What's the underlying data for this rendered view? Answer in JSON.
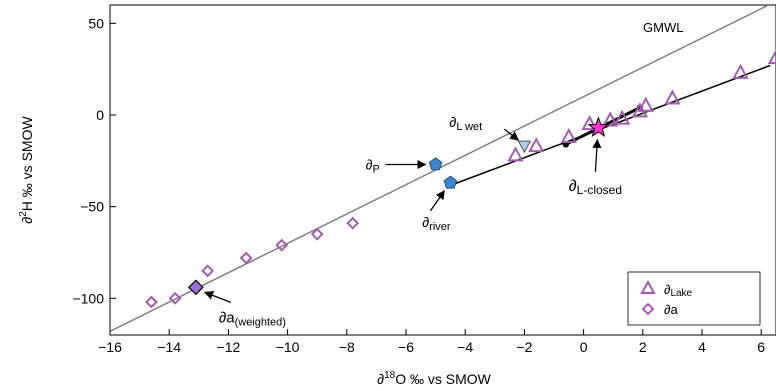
{
  "chart_data": {
    "type": "scatter",
    "xlabel": "∂18O ‰ vs SMOW",
    "xlabel_parts": {
      "main": "∂",
      "sup": "18",
      "rest": "O ‰ vs SMOW"
    },
    "ylabel": "∂2H ‰ vs SMOW",
    "ylabel_parts": {
      "main": "∂",
      "sup": "2",
      "rest": "H ‰ vs SMOW"
    },
    "xlim": [
      -16,
      6.5
    ],
    "ylim": [
      -120,
      60
    ],
    "x_ticks": [
      -16,
      -14,
      -12,
      -10,
      -8,
      -6,
      -4,
      -2,
      0,
      2,
      4,
      6
    ],
    "x_tick_labels": [
      "−16",
      "−14",
      "−12",
      "−10",
      "−8",
      "−6",
      "−4",
      "−2",
      "0",
      "2",
      "4",
      "6"
    ],
    "y_ticks": [
      50,
      0,
      -50,
      -100
    ],
    "y_tick_labels": [
      "50",
      "0",
      "−50",
      "−100"
    ],
    "grid": false,
    "legend_position": "bottom-right",
    "colors": {
      "lake": "#a35bb0",
      "a": "#a35bb0",
      "aweighted_fill": "#9b70d8",
      "p_fill": "#3b86cf",
      "river_fill": "#3b86cf",
      "lwet_fill": "#a8cfe6",
      "lclosed_fill": "#ff2fd6",
      "gmwl_line": "#808080",
      "lel_line": "#000000"
    },
    "gmwl": {
      "label": "GMWL",
      "slope": 8,
      "intercept": 10,
      "x_range": [
        -16,
        6.5
      ]
    },
    "lel": {
      "x": [
        -4.6,
        6.3
      ],
      "y": [
        -39,
        27
      ]
    },
    "closed_line": {
      "x": [
        -0.6,
        1.9
      ],
      "y": [
        -16,
        4
      ]
    },
    "series": [
      {
        "name": "∂Lake",
        "label_main": "∂",
        "label_sub": "Lake",
        "marker": "triangle",
        "points": [
          {
            "x": -2.3,
            "y": -22
          },
          {
            "x": -1.6,
            "y": -17
          },
          {
            "x": -0.5,
            "y": -12
          },
          {
            "x": 0.2,
            "y": -5
          },
          {
            "x": 0.9,
            "y": -3
          },
          {
            "x": 1.3,
            "y": -2
          },
          {
            "x": 1.9,
            "y": 2
          },
          {
            "x": 2.1,
            "y": 5
          },
          {
            "x": 3.0,
            "y": 9
          },
          {
            "x": 5.3,
            "y": 23
          },
          {
            "x": 6.5,
            "y": 31
          }
        ]
      },
      {
        "name": "∂a",
        "label_main": "∂",
        "label_sub": "a",
        "marker": "diamond",
        "points": [
          {
            "x": -14.6,
            "y": -102
          },
          {
            "x": -13.8,
            "y": -100
          },
          {
            "x": -12.7,
            "y": -85
          },
          {
            "x": -11.4,
            "y": -78
          },
          {
            "x": -10.2,
            "y": -71
          },
          {
            "x": -9.0,
            "y": -65
          },
          {
            "x": -7.8,
            "y": -59
          }
        ]
      }
    ],
    "special_points": {
      "a_weighted": {
        "x": -13.1,
        "y": -94,
        "label_main": "∂a",
        "label_sub": "(weighted)"
      },
      "p": {
        "x": -5.0,
        "y": -27,
        "label_main": "∂",
        "label_sub": "P"
      },
      "river": {
        "x": -4.5,
        "y": -37,
        "label_main": "∂",
        "label_sub": "river"
      },
      "l_wet": {
        "x": -2.0,
        "y": -17,
        "label_main": "∂",
        "label_sub": "L wet"
      },
      "l_closed": {
        "x": 0.5,
        "y": -7,
        "label_main": "∂",
        "label_sub": "L-closed"
      }
    }
  }
}
